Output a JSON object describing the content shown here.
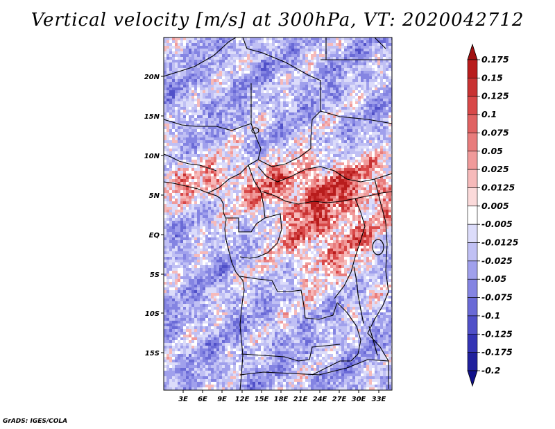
{
  "title": "Vertical velocity [m/s] at 300hPa, VT: 2020042712",
  "credit": "GrADS: IGES/COLA",
  "map": {
    "lat_labels": [
      "20N",
      "15N",
      "10N",
      "5N",
      "EQ",
      "5S",
      "10S",
      "15S"
    ],
    "lon_labels": [
      "3E",
      "6E",
      "9E",
      "12E",
      "15E",
      "18E",
      "21E",
      "24E",
      "27E",
      "30E",
      "33E"
    ]
  },
  "colorbar": {
    "levels": [
      "0.175",
      "0.15",
      "0.125",
      "0.1",
      "0.075",
      "0.05",
      "0.025",
      "0.0125",
      "0.005",
      "-0.005",
      "-0.0125",
      "-0.025",
      "-0.05",
      "-0.075",
      "-0.1",
      "-0.125",
      "-0.175",
      "-0.2"
    ],
    "colors": [
      "#a01010",
      "#b81c1c",
      "#c83232",
      "#d84848",
      "#e06262",
      "#e87c7c",
      "#f09a9a",
      "#f6baba",
      "#fbdada",
      "#ffffff",
      "#dcdcfa",
      "#c0c0f4",
      "#a0a0ec",
      "#8484e2",
      "#6a6ad6",
      "#5050c8",
      "#3434b4",
      "#20209c",
      "#10108a"
    ]
  }
}
